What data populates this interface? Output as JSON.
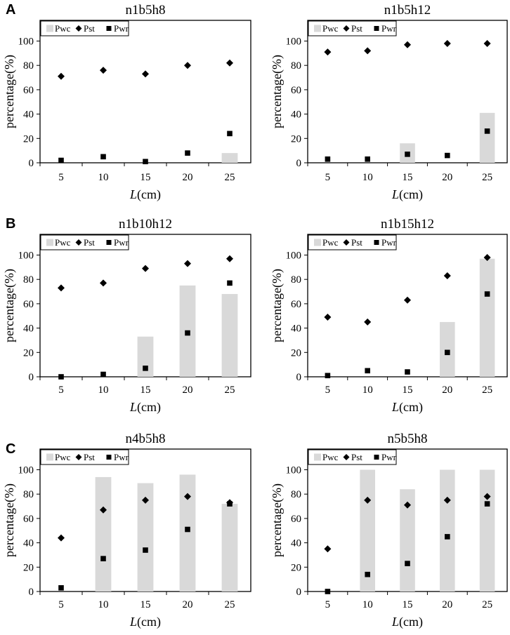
{
  "panel_labels": [
    "A",
    "B",
    "C"
  ],
  "legend": {
    "entries": [
      {
        "name": "Pwc",
        "marker": "bar",
        "color": "#d9d9d9"
      },
      {
        "name": "Pst",
        "marker": "diamond",
        "color": "#000000"
      },
      {
        "name": "Pwr",
        "marker": "square",
        "color": "#000000"
      }
    ],
    "position": "top-left"
  },
  "chart_data": [
    {
      "type": "bar+scatter",
      "panel": "A",
      "title": "n1b5h8",
      "xlabel_italic": "L",
      "xlabel_unit": "(cm)",
      "ylabel": "percentage(%)",
      "categories": [
        "5",
        "10",
        "15",
        "20",
        "25"
      ],
      "ylim": [
        0,
        100
      ],
      "yticks": [
        "0",
        "20",
        "40",
        "60",
        "80",
        "100"
      ],
      "series": [
        {
          "name": "Pwc",
          "kind": "bar",
          "values": [
            0,
            0,
            0,
            0,
            8
          ]
        },
        {
          "name": "Pst",
          "kind": "diamond",
          "values": [
            71,
            76,
            73,
            80,
            82
          ]
        },
        {
          "name": "Pwr",
          "kind": "square",
          "values": [
            2,
            5,
            1,
            8,
            24
          ]
        }
      ]
    },
    {
      "type": "bar+scatter",
      "panel": "",
      "title": "n1b5h12",
      "xlabel_italic": "L",
      "xlabel_unit": "(cm)",
      "ylabel": "percentage(%)",
      "categories": [
        "5",
        "10",
        "15",
        "20",
        "25"
      ],
      "ylim": [
        0,
        100
      ],
      "yticks": [
        "0",
        "20",
        "40",
        "60",
        "80",
        "100"
      ],
      "series": [
        {
          "name": "Pwc",
          "kind": "bar",
          "values": [
            0,
            0,
            16,
            0,
            41
          ]
        },
        {
          "name": "Pst",
          "kind": "diamond",
          "values": [
            91,
            92,
            97,
            98,
            98
          ]
        },
        {
          "name": "Pwr",
          "kind": "square",
          "values": [
            3,
            3,
            7,
            6,
            26
          ]
        }
      ]
    },
    {
      "type": "bar+scatter",
      "panel": "B",
      "title": "n1b10h12",
      "xlabel_italic": "L",
      "xlabel_unit": "(cm)",
      "ylabel": "percentage(%)",
      "categories": [
        "5",
        "10",
        "15",
        "20",
        "25"
      ],
      "ylim": [
        0,
        100
      ],
      "yticks": [
        "0",
        "20",
        "40",
        "60",
        "80",
        "100"
      ],
      "series": [
        {
          "name": "Pwc",
          "kind": "bar",
          "values": [
            0,
            0,
            33,
            75,
            68
          ]
        },
        {
          "name": "Pst",
          "kind": "diamond",
          "values": [
            73,
            77,
            89,
            93,
            97
          ]
        },
        {
          "name": "Pwr",
          "kind": "square",
          "values": [
            0,
            2,
            7,
            36,
            77
          ]
        }
      ]
    },
    {
      "type": "bar+scatter",
      "panel": "",
      "title": "n1b15h12",
      "xlabel_italic": "L",
      "xlabel_unit": "(cm)",
      "ylabel": "percentage(%)",
      "categories": [
        "5",
        "10",
        "15",
        "20",
        "25"
      ],
      "ylim": [
        0,
        100
      ],
      "yticks": [
        "0",
        "20",
        "40",
        "60",
        "80",
        "100"
      ],
      "series": [
        {
          "name": "Pwc",
          "kind": "bar",
          "values": [
            0,
            0,
            0,
            45,
            97
          ]
        },
        {
          "name": "Pst",
          "kind": "diamond",
          "values": [
            49,
            45,
            63,
            83,
            98
          ]
        },
        {
          "name": "Pwr",
          "kind": "square",
          "values": [
            1,
            5,
            4,
            20,
            68
          ]
        }
      ]
    },
    {
      "type": "bar+scatter",
      "panel": "C",
      "title": "n4b5h8",
      "xlabel_italic": "L",
      "xlabel_unit": "(cm)",
      "ylabel": "percentage(%)",
      "categories": [
        "5",
        "10",
        "15",
        "20",
        "25"
      ],
      "ylim": [
        0,
        100
      ],
      "yticks": [
        "0",
        "20",
        "40",
        "60",
        "80",
        "100"
      ],
      "series": [
        {
          "name": "Pwc",
          "kind": "bar",
          "values": [
            0,
            94,
            89,
            96,
            72
          ]
        },
        {
          "name": "Pst",
          "kind": "diamond",
          "values": [
            44,
            67,
            75,
            78,
            73
          ]
        },
        {
          "name": "Pwr",
          "kind": "square",
          "values": [
            3,
            27,
            34,
            51,
            72
          ]
        }
      ]
    },
    {
      "type": "bar+scatter",
      "panel": "",
      "title": "n5b5h8",
      "xlabel_italic": "L",
      "xlabel_unit": "(cm)",
      "ylabel": "percentage(%)",
      "categories": [
        "5",
        "10",
        "15",
        "20",
        "25"
      ],
      "ylim": [
        0,
        100
      ],
      "yticks": [
        "0",
        "20",
        "40",
        "60",
        "80",
        "100"
      ],
      "series": [
        {
          "name": "Pwc",
          "kind": "bar",
          "values": [
            0,
            100,
            84,
            100,
            100
          ]
        },
        {
          "name": "Pst",
          "kind": "diamond",
          "values": [
            35,
            75,
            71,
            75,
            78
          ]
        },
        {
          "name": "Pwr",
          "kind": "square",
          "values": [
            0,
            14,
            23,
            45,
            72
          ]
        }
      ]
    }
  ]
}
